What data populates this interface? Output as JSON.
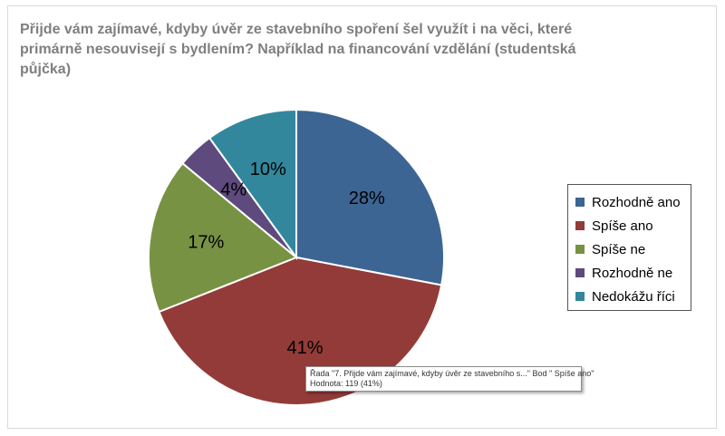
{
  "chart_data": {
    "type": "pie",
    "title": "Přijde vám zajímavé, kdyby úvěr ze stavebního spoření šel využít i na věci, které primárně nesouvisejí s bydlením? Například na financování vzdělání (studentská půjčka)",
    "categories": [
      "Rozhodně ano",
      "Spíše ano",
      "Spíše ne",
      "Rozhodně ne",
      "Nedokážu říci"
    ],
    "values": [
      28,
      41,
      17,
      4,
      10
    ],
    "labels": [
      "28%",
      "41%",
      "17%",
      "4%",
      "10%"
    ],
    "colors": [
      "#3C6594",
      "#933B38",
      "#789244",
      "#5E4A7D",
      "#32879D"
    ],
    "legend_position": "right"
  },
  "tooltip": {
    "line1": "Řada \"7. Přijde vám zajímavé, kdyby úvěr ze stavebního s...\" Bod \" Spíše ano\"",
    "line2": "Hodnota: 119 (41%)"
  }
}
